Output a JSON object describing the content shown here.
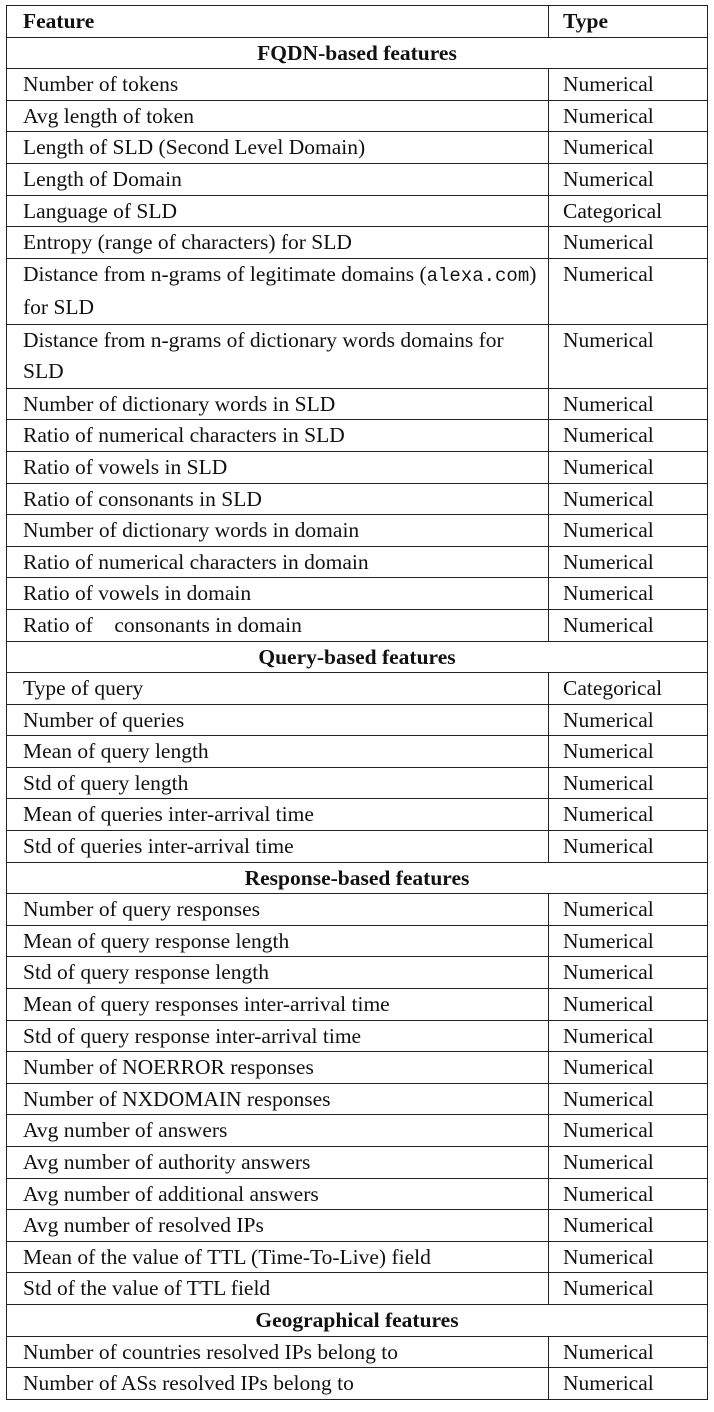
{
  "header": {
    "feature": "Feature",
    "type": "Type"
  },
  "sections": [
    {
      "title": "FQDN-based features",
      "rows": [
        {
          "feature": "Number of tokens",
          "type": "Numerical"
        },
        {
          "feature": "Avg length of token",
          "type": "Numerical"
        },
        {
          "feature": "Length of SLD (Second Level Domain)",
          "type": "Numerical"
        },
        {
          "feature": "Length of Domain",
          "type": "Numerical"
        },
        {
          "feature": "Language of SLD",
          "type": "Categorical"
        },
        {
          "feature": "Entropy (range of characters) for SLD",
          "type": "Numerical"
        },
        {
          "feature_pre": "Distance from n-grams of legitimate domains (",
          "feature_code": "alexa.com",
          "feature_post": ") for SLD",
          "type": "Numerical"
        },
        {
          "feature": "Distance from n-grams of dictionary words domains for SLD",
          "type": "Numerical"
        },
        {
          "feature": "Number of dictionary words in SLD",
          "type": "Numerical"
        },
        {
          "feature": "Ratio of numerical characters in SLD",
          "type": "Numerical"
        },
        {
          "feature": "Ratio of vowels in SLD",
          "type": "Numerical"
        },
        {
          "feature": "Ratio of consonants in SLD",
          "type": "Numerical"
        },
        {
          "feature": "Number of dictionary words in domain",
          "type": "Numerical"
        },
        {
          "feature": "Ratio of numerical characters in domain",
          "type": "Numerical"
        },
        {
          "feature": "Ratio of vowels in domain",
          "type": "Numerical"
        },
        {
          "feature": "Ratio of    consonants in domain",
          "type": "Numerical"
        }
      ]
    },
    {
      "title": "Query-based features",
      "rows": [
        {
          "feature": "Type of query",
          "type": "Categorical"
        },
        {
          "feature": "Number of queries",
          "type": "Numerical"
        },
        {
          "feature": "Mean of query length",
          "type": "Numerical"
        },
        {
          "feature": "Std of query length",
          "type": "Numerical"
        },
        {
          "feature": "Mean of queries inter-arrival time",
          "type": "Numerical"
        },
        {
          "feature": "Std of queries inter-arrival time",
          "type": "Numerical"
        }
      ]
    },
    {
      "title": "Response-based features",
      "rows": [
        {
          "feature": "Number of query responses",
          "type": "Numerical"
        },
        {
          "feature": "Mean of query response length",
          "type": "Numerical"
        },
        {
          "feature": "Std of query response length",
          "type": "Numerical"
        },
        {
          "feature": "Mean of query responses inter-arrival time",
          "type": "Numerical"
        },
        {
          "feature": "Std of query response inter-arrival time",
          "type": "Numerical"
        },
        {
          "feature": "Number of NOERROR responses",
          "type": "Numerical"
        },
        {
          "feature": "Number of NXDOMAIN responses",
          "type": "Numerical"
        },
        {
          "feature": "Avg number of answers",
          "type": "Numerical"
        },
        {
          "feature": "Avg number of authority answers",
          "type": "Numerical"
        },
        {
          "feature": "Avg number of additional answers",
          "type": "Numerical"
        },
        {
          "feature": "Avg number of resolved IPs",
          "type": "Numerical"
        },
        {
          "feature": "Mean of the value of TTL (Time-To-Live) field",
          "type": "Numerical"
        },
        {
          "feature": "Std of the value of TTL field",
          "type": "Numerical"
        }
      ]
    },
    {
      "title": "Geographical features",
      "rows": [
        {
          "feature": "Number of countries resolved IPs belong to",
          "type": "Numerical"
        },
        {
          "feature": "Number of ASs resolved IPs belong to",
          "type": "Numerical"
        }
      ]
    }
  ]
}
